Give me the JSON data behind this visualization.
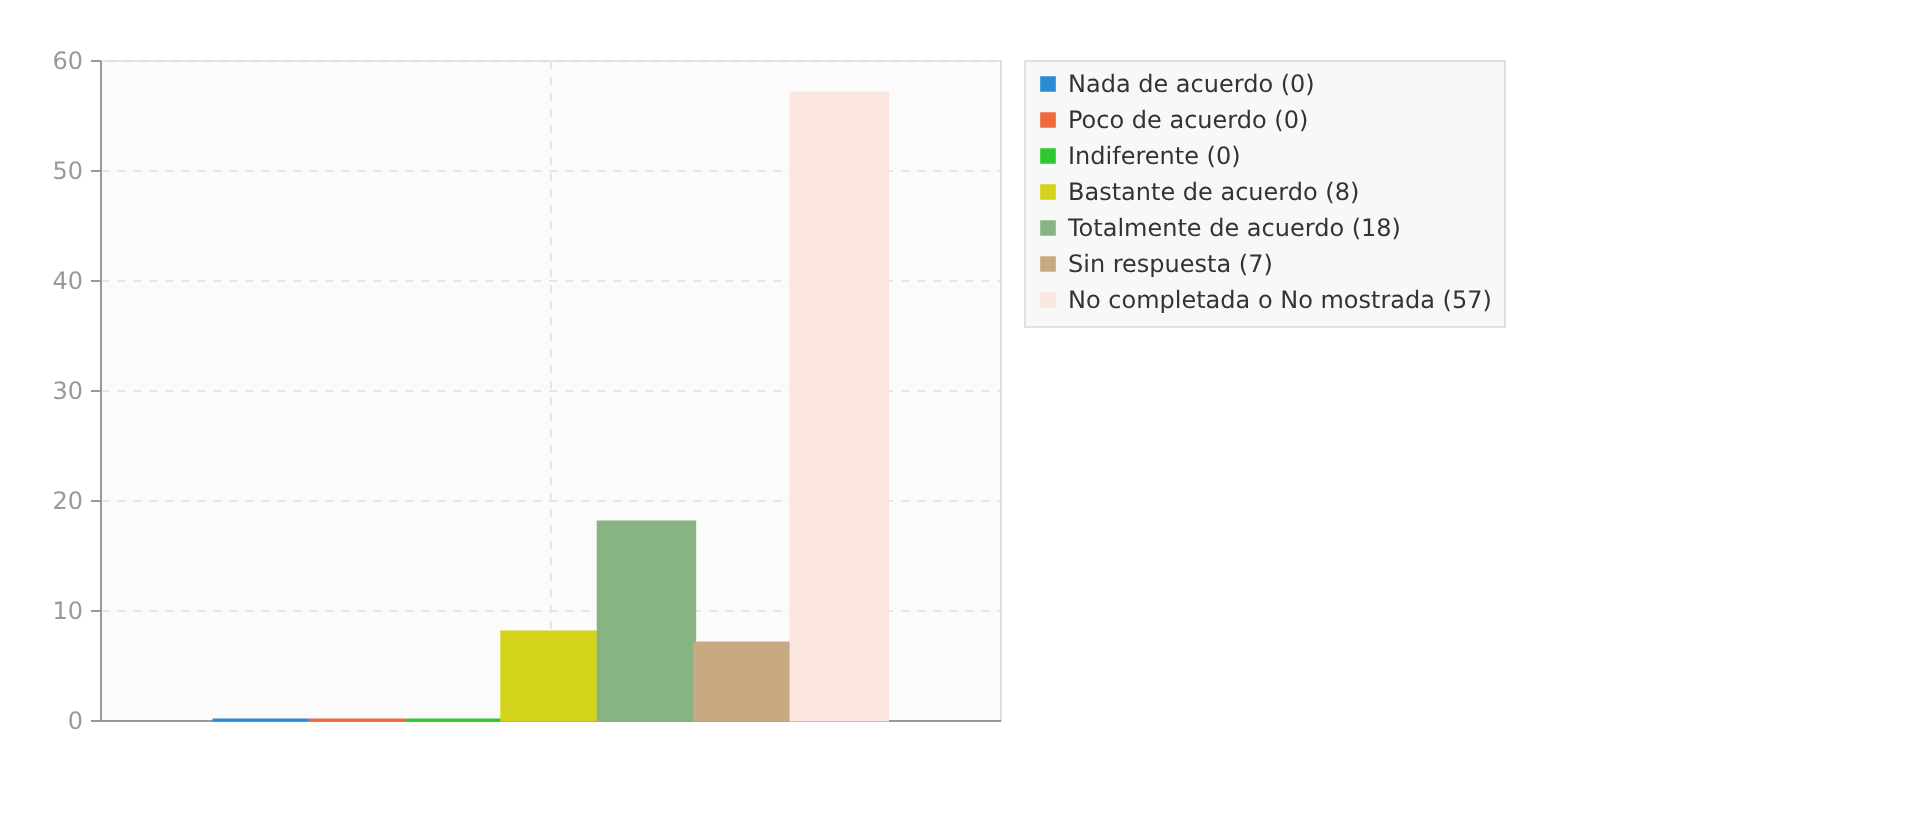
{
  "chart_data": {
    "type": "bar",
    "categories": [
      null
    ],
    "series": [
      {
        "name": "Nada de acuerdo (0)",
        "color": "#2a8ad4",
        "values": [
          0
        ]
      },
      {
        "name": "Poco de acuerdo (0)",
        "color": "#ee6b3d",
        "values": [
          0
        ]
      },
      {
        "name": "Indiferente (0)",
        "color": "#2ec82e",
        "values": [
          0
        ]
      },
      {
        "name": "Bastante de acuerdo (8)",
        "color": "#d3d41b",
        "values": [
          8
        ]
      },
      {
        "name": "Totalmente de acuerdo (18)",
        "color": "#88b383",
        "values": [
          18
        ]
      },
      {
        "name": "Sin respuesta (7)",
        "color": "#c8aa82",
        "values": [
          7
        ]
      },
      {
        "name": "No completada o No mostrada (57)",
        "color": "#fae6de",
        "values": [
          57
        ]
      }
    ],
    "ylim": [
      0,
      60
    ],
    "yticks": [
      0,
      10,
      20,
      30,
      40,
      50,
      60
    ],
    "grid": true,
    "legend": "top right"
  }
}
